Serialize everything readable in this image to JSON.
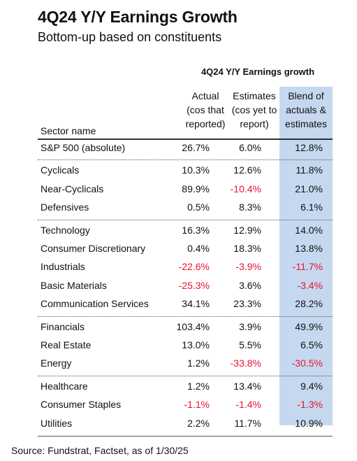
{
  "chart_data": {
    "type": "table",
    "title": "4Q24 Y/Y Earnings Growth",
    "subtitle": "Bottom-up based on constituents",
    "group_header": "4Q24 Y/Y Earnings growth",
    "columns": {
      "sector": "Sector name",
      "actual": [
        "Actual",
        "(cos that",
        "reported)"
      ],
      "estimates": [
        "Estimates",
        "(cos yet to",
        "report)"
      ],
      "blend": [
        "Blend of",
        "actuals &",
        "estimates"
      ]
    },
    "groups": [
      {
        "rows": [
          {
            "sector": "S&P 500 (absolute)",
            "actual": "26.7%",
            "estimates": "6.0%",
            "blend": "12.8%"
          }
        ]
      },
      {
        "rows": [
          {
            "sector": "Cyclicals",
            "actual": "10.3%",
            "estimates": "12.6%",
            "blend": "11.8%"
          },
          {
            "sector": "Near-Cyclicals",
            "actual": "89.9%",
            "estimates": "-10.4%",
            "blend": "21.0%"
          },
          {
            "sector": "Defensives",
            "actual": "0.5%",
            "estimates": "8.3%",
            "blend": "6.1%"
          }
        ]
      },
      {
        "rows": [
          {
            "sector": "Technology",
            "actual": "16.3%",
            "estimates": "12.9%",
            "blend": "14.0%"
          },
          {
            "sector": "Consumer Discretionary",
            "actual": "0.4%",
            "estimates": "18.3%",
            "blend": "13.8%"
          },
          {
            "sector": "Industrials",
            "actual": "-22.6%",
            "estimates": "-3.9%",
            "blend": "-11.7%"
          },
          {
            "sector": "Basic Materials",
            "actual": "-25.3%",
            "estimates": "3.6%",
            "blend": "-3.4%"
          },
          {
            "sector": "Communication Services",
            "actual": "34.1%",
            "estimates": "23.3%",
            "blend": "28.2%"
          }
        ]
      },
      {
        "rows": [
          {
            "sector": "Financials",
            "actual": "103.4%",
            "estimates": "3.9%",
            "blend": "49.9%"
          },
          {
            "sector": "Real Estate",
            "actual": "13.0%",
            "estimates": "5.5%",
            "blend": "6.5%"
          },
          {
            "sector": "Energy",
            "actual": "1.2%",
            "estimates": "-33.8%",
            "blend": "-30.5%"
          }
        ]
      },
      {
        "rows": [
          {
            "sector": "Healthcare",
            "actual": "1.2%",
            "estimates": "13.4%",
            "blend": "9.4%"
          },
          {
            "sector": "Consumer Staples",
            "actual": "-1.1%",
            "estimates": "-1.4%",
            "blend": "-1.3%"
          },
          {
            "sector": "Utilities",
            "actual": "2.2%",
            "estimates": "11.7%",
            "blend": "10.9%"
          }
        ]
      }
    ],
    "colors": {
      "negative": "#e8132f",
      "blend_highlight": "#c5d8ef"
    }
  },
  "source": "Source: Fundstrat, Factset, as of 1/30/25"
}
